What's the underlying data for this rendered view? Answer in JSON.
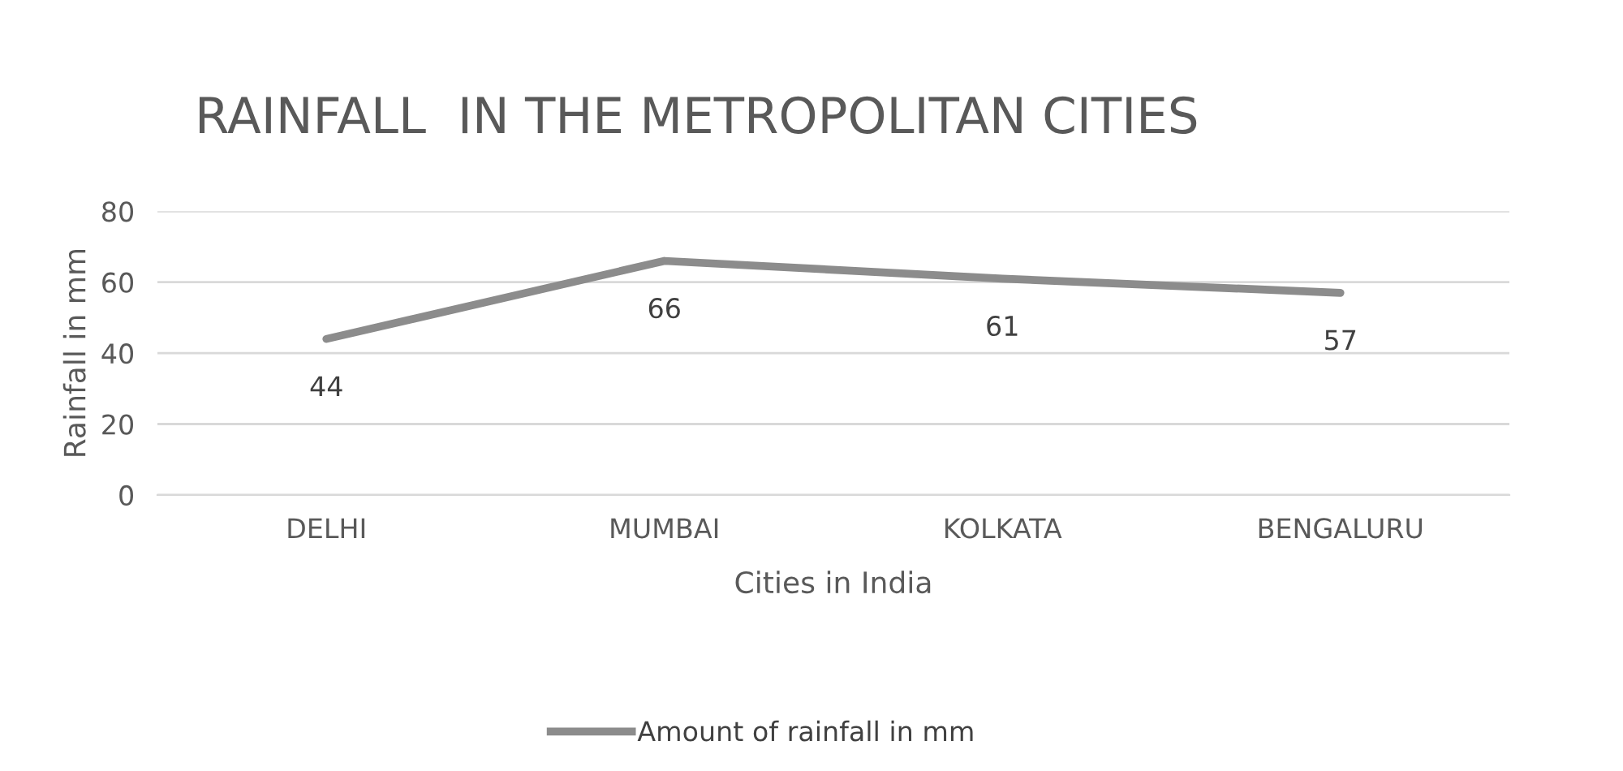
{
  "chart_data": {
    "type": "line",
    "title": "RAINFALL  IN THE METROPOLITAN CITIES",
    "xlabel": "Cities in India",
    "ylabel": "Rainfall in mm",
    "categories": [
      "DELHI",
      "MUMBAI",
      "KOLKATA",
      "BENGALURU"
    ],
    "series": [
      {
        "name": "Amount of rainfall in mm",
        "color": "#8c8c8c",
        "values": [
          44,
          66,
          61,
          57
        ]
      }
    ],
    "ylim": [
      0,
      80
    ],
    "yticks": [
      0,
      20,
      40,
      60,
      80
    ],
    "grid": "y",
    "legend": "bottom",
    "data_labels": true,
    "marker": "none",
    "line_style": "solid"
  }
}
